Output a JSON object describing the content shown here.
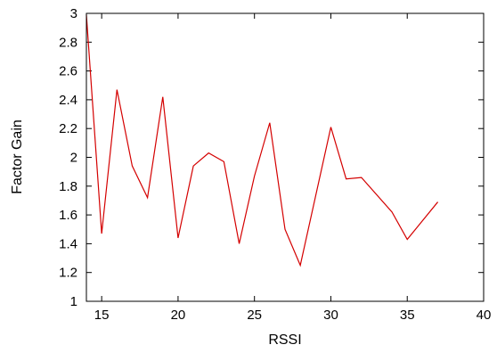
{
  "chart_data": {
    "type": "line",
    "xlabel": "RSSI",
    "ylabel": "Factor Gain",
    "xlim": [
      14,
      40
    ],
    "ylim": [
      1,
      3
    ],
    "xticks": [
      15,
      20,
      25,
      30,
      35,
      40
    ],
    "yticks": [
      1,
      1.2,
      1.4,
      1.6,
      1.8,
      2,
      2.2,
      2.4,
      2.6,
      2.8,
      3
    ],
    "grid": false,
    "legend": "none",
    "series": [
      {
        "color": "#d40000",
        "x": [
          14,
          15,
          16,
          17,
          18,
          19,
          20,
          21,
          22,
          23,
          24,
          25,
          26,
          27,
          28,
          30,
          31,
          32,
          34,
          35,
          37
        ],
        "y": [
          2.99,
          1.47,
          2.47,
          1.94,
          1.72,
          2.42,
          1.44,
          1.94,
          2.03,
          1.97,
          1.4,
          1.87,
          2.24,
          1.5,
          1.25,
          2.21,
          1.85,
          1.86,
          1.62,
          1.43,
          1.69
        ]
      }
    ]
  }
}
